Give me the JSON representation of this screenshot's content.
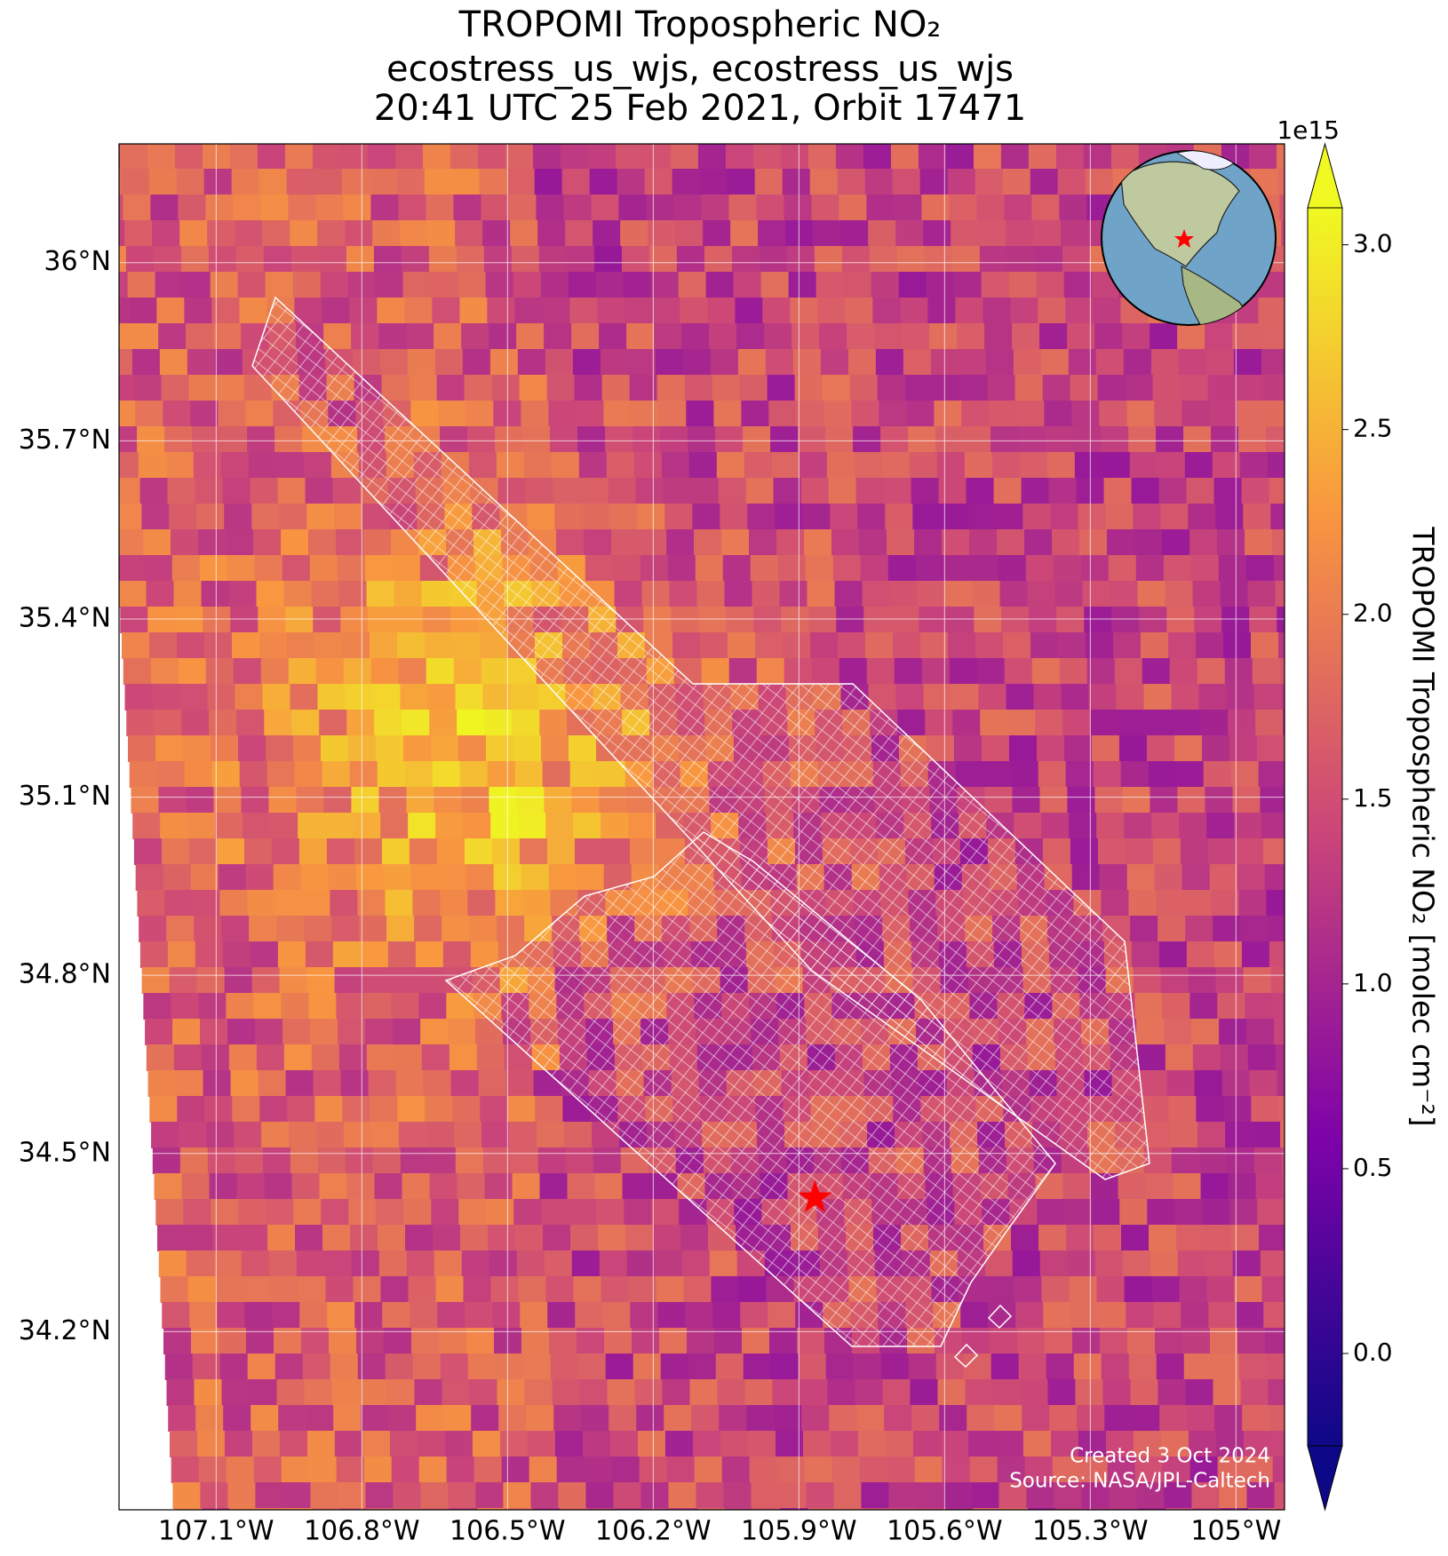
{
  "chart_data": {
    "type": "map",
    "title": [
      "TROPOMI Tropospheric NO₂",
      "ecostress_us_wjs, ecostress_us_wjs",
      "20:41 UTC 25 Feb 2021, Orbit 17471"
    ],
    "xlim": [
      -107.3,
      -104.9
    ],
    "ylim": [
      33.9,
      36.2
    ],
    "xticks": [
      {
        "value": -107.1,
        "label": "107.1°W"
      },
      {
        "value": -106.8,
        "label": "106.8°W"
      },
      {
        "value": -106.5,
        "label": "106.5°W"
      },
      {
        "value": -106.2,
        "label": "106.2°W"
      },
      {
        "value": -105.9,
        "label": "105.9°W"
      },
      {
        "value": -105.6,
        "label": "105.6°W"
      },
      {
        "value": -105.3,
        "label": "105.3°W"
      },
      {
        "value": -105,
        "label": "105°W"
      }
    ],
    "yticks": [
      {
        "value": 34.2,
        "label": "34.2°N"
      },
      {
        "value": 34.5,
        "label": "34.5°N"
      },
      {
        "value": 34.8,
        "label": "34.8°N"
      },
      {
        "value": 35.1,
        "label": "35.1°N"
      },
      {
        "value": 35.4,
        "label": "35.4°N"
      },
      {
        "value": 35.7,
        "label": "35.7°N"
      },
      {
        "value": 36,
        "label": "36°N"
      }
    ],
    "grid": true,
    "colorbar": {
      "label": "TROPOMI Tropospheric NO₂ [molec cm⁻²]",
      "scale": "1e15",
      "lim": [
        -0.25,
        3.1
      ],
      "ticks": [
        {
          "value": 0,
          "label": "0.0"
        },
        0.5,
        {
          "value": 1,
          "label": "1.0"
        },
        1.5,
        {
          "value": 2,
          "label": "2.0"
        },
        2.5,
        {
          "value": 3,
          "label": "3.0"
        }
      ],
      "colors": [
        "#0d0887",
        "#7e03a8",
        "#cc4778",
        "#f89540",
        "#f0f921"
      ]
    },
    "site": {
      "lon": -105.867,
      "lat": 34.425,
      "color": "#ff0000"
    },
    "credits": [
      "Created 3 Oct 2024",
      "Source: NASA/JPL-Caltech"
    ]
  }
}
